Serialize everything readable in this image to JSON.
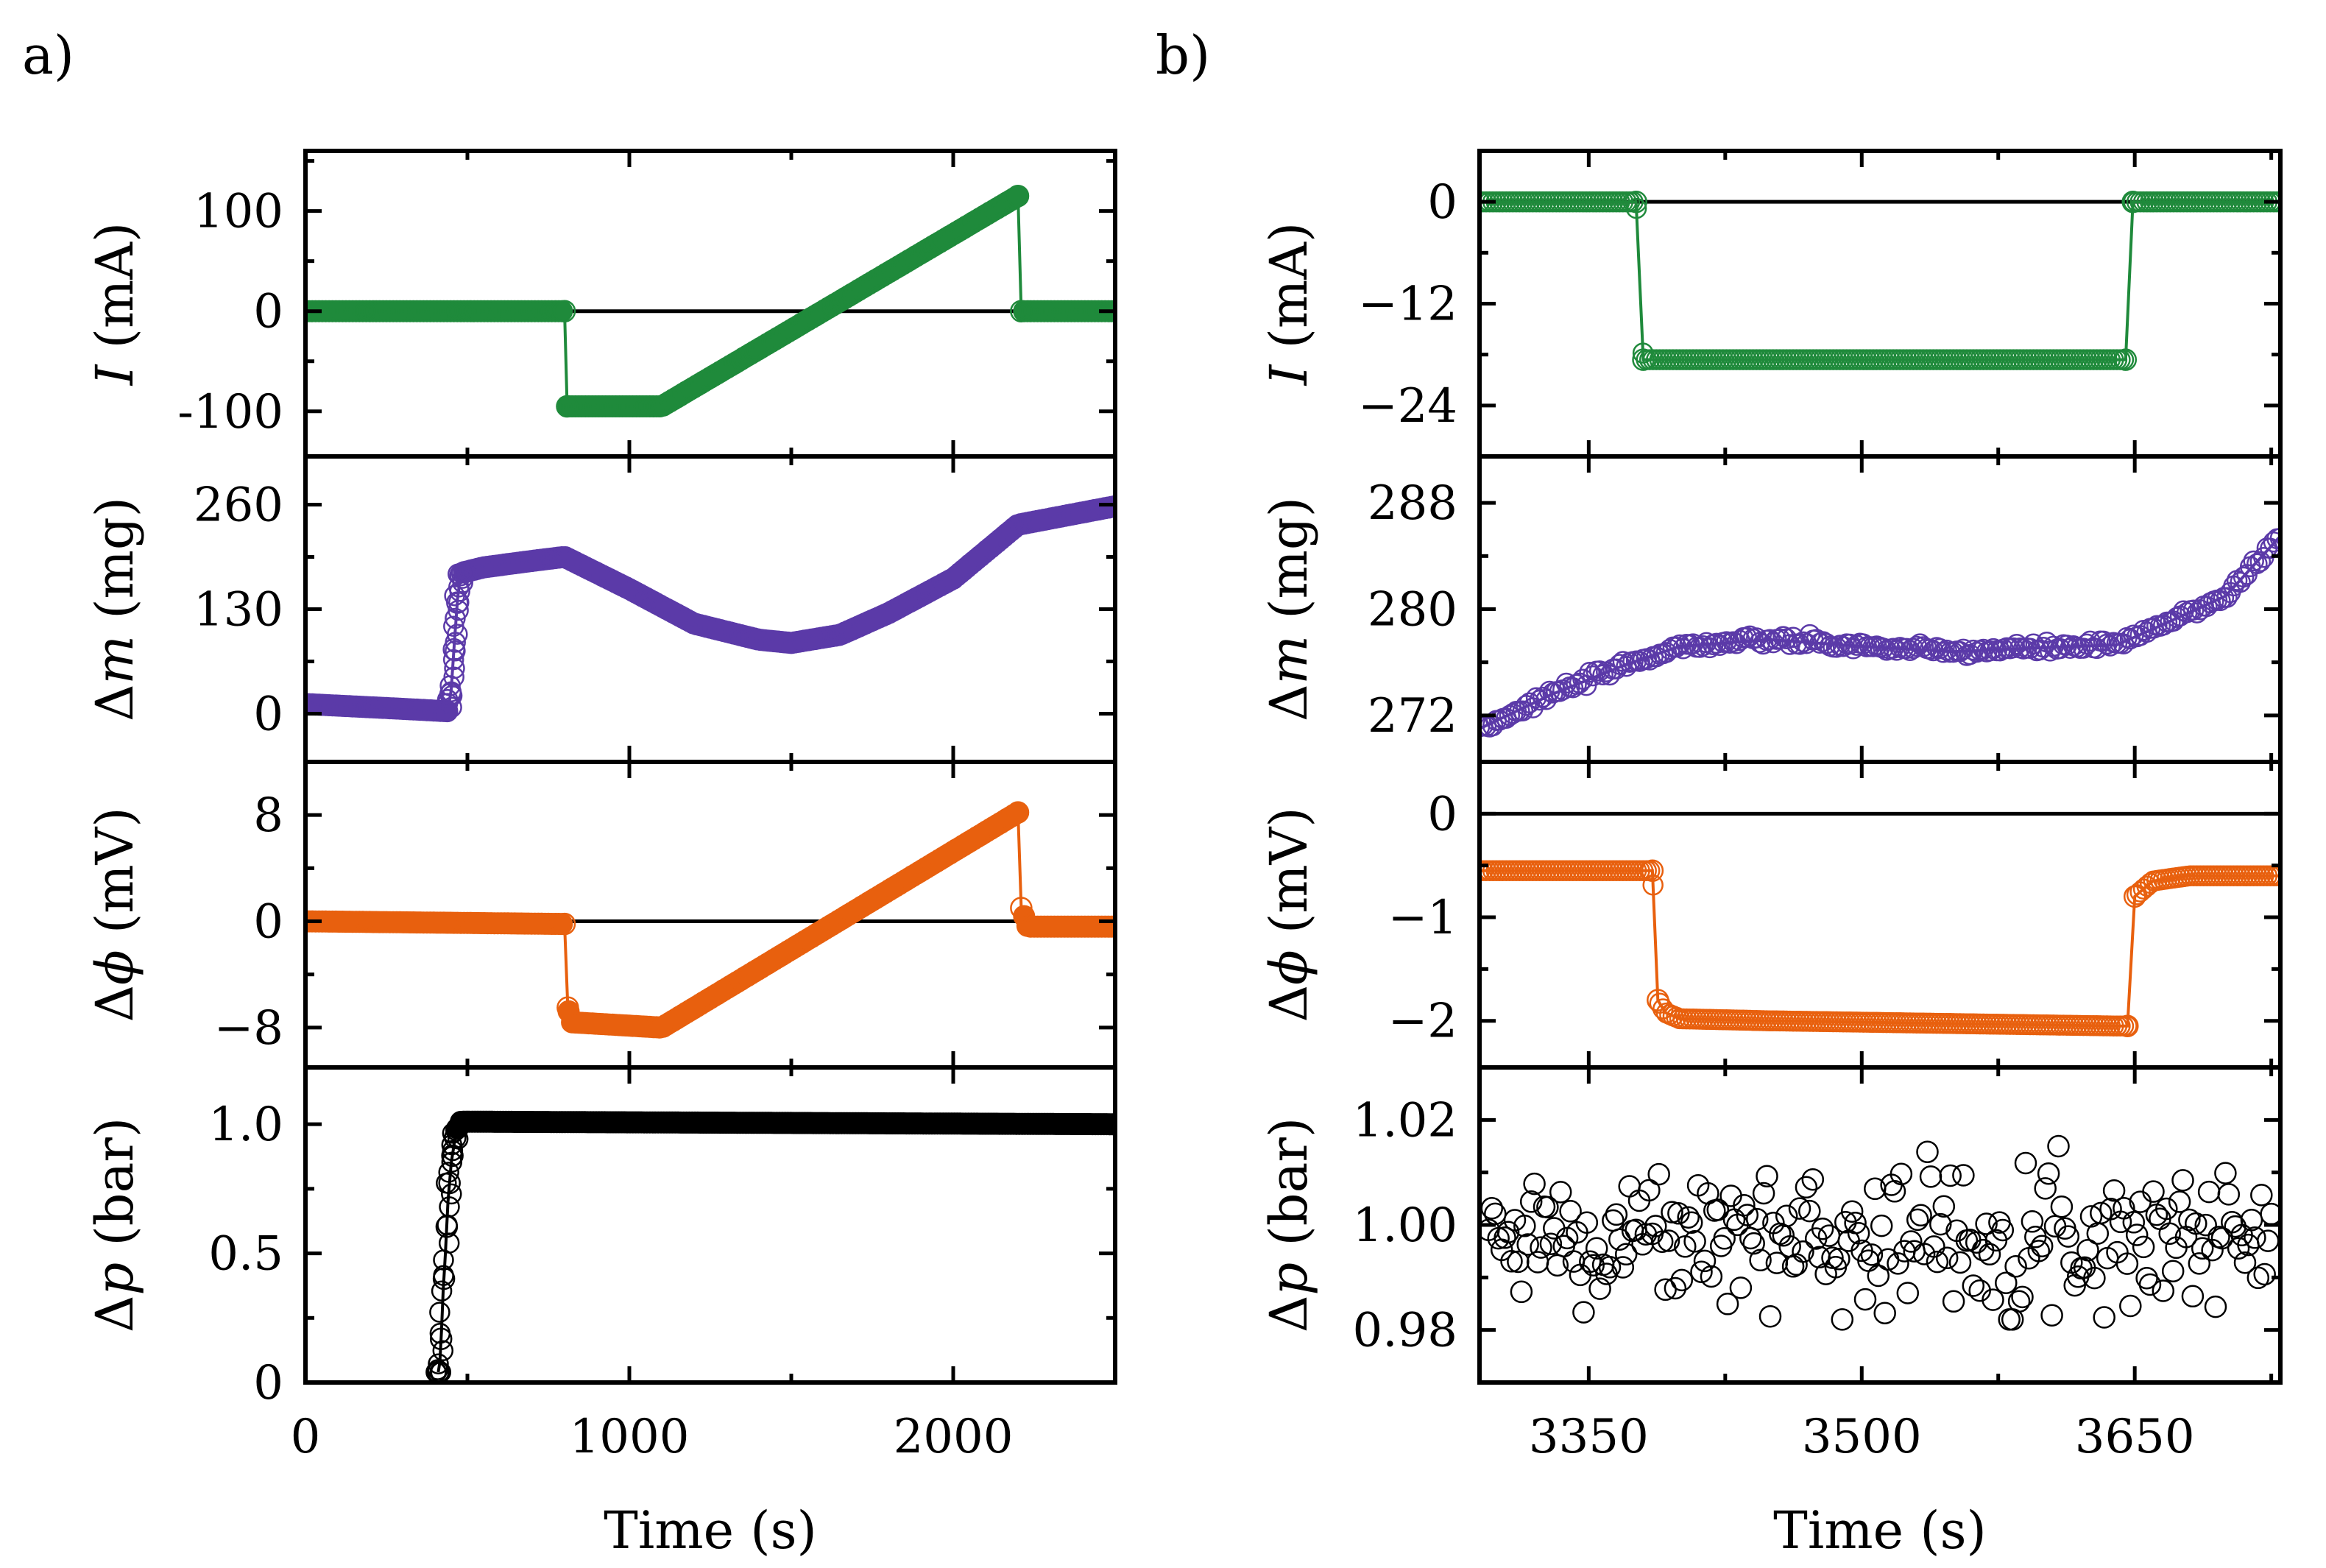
{
  "figure": {
    "panel_labels": [
      "a)",
      "b)"
    ],
    "colors": {
      "current": "#1f8a3b",
      "mass": "#5b3aa8",
      "potential": "#e8600e",
      "pressure": "#000000",
      "zero_line": "#000000"
    }
  },
  "chart_data": [
    {
      "id": "a",
      "type": "scatter",
      "panel_label": "a)",
      "xlabel": "Time (s)",
      "xlim": [
        0,
        2500
      ],
      "xticks": [
        0,
        1000,
        2000
      ],
      "xtick_labels": [
        "0",
        "1000",
        "2000"
      ],
      "subplots": [
        {
          "ylabel_symbol": "I",
          "ylabel_unit": " (mA)",
          "ylabel_prefix": "",
          "ylim": [
            -145,
            160
          ],
          "yticks": [
            -100,
            0,
            100
          ],
          "ytick_labels": [
            "-100",
            "0",
            "100"
          ],
          "zero_line": true,
          "color_key": "current",
          "marker": "filled",
          "series": [
            {
              "t": 0,
              "v": 0
            },
            {
              "t": 800,
              "v": 0
            },
            {
              "t": 808,
              "v": -95
            },
            {
              "t": 1100,
              "v": -95
            },
            {
              "t": 2200,
              "v": 115
            },
            {
              "t": 2210,
              "v": 0
            },
            {
              "t": 2500,
              "v": 0
            }
          ],
          "jumps": [
            [
              800,
              808
            ],
            [
              2200,
              2210
            ]
          ]
        },
        {
          "ylabel_symbol": "m",
          "ylabel_unit": " (mg)",
          "ylabel_prefix": "Δ",
          "ylim": [
            -60,
            320
          ],
          "yticks": [
            0,
            130,
            260
          ],
          "ytick_labels": [
            "0",
            "130",
            "260"
          ],
          "zero_line": false,
          "color_key": "mass",
          "marker": "filled",
          "series": [
            {
              "t": 0,
              "v": 12
            },
            {
              "t": 300,
              "v": 6
            },
            {
              "t": 440,
              "v": 3
            },
            {
              "t": 450,
              "v": 30
            },
            {
              "t": 460,
              "v": 90
            },
            {
              "t": 470,
              "v": 145
            },
            {
              "t": 480,
              "v": 175
            },
            {
              "t": 550,
              "v": 182
            },
            {
              "t": 700,
              "v": 190
            },
            {
              "t": 800,
              "v": 195
            },
            {
              "t": 1000,
              "v": 155
            },
            {
              "t": 1200,
              "v": 112
            },
            {
              "t": 1400,
              "v": 92
            },
            {
              "t": 1500,
              "v": 88
            },
            {
              "t": 1650,
              "v": 98
            },
            {
              "t": 1800,
              "v": 125
            },
            {
              "t": 2000,
              "v": 168
            },
            {
              "t": 2200,
              "v": 235
            },
            {
              "t": 2500,
              "v": 258
            }
          ],
          "hollow_range": [
            440,
            485
          ]
        },
        {
          "ylabel_symbol": "ϕ",
          "ylabel_unit": " (mV)",
          "ylabel_prefix": "Δ",
          "ylim": [
            -11,
            12
          ],
          "yticks": [
            -8,
            0,
            8
          ],
          "ytick_labels": [
            "−8",
            "0",
            "8"
          ],
          "zero_line": true,
          "color_key": "potential",
          "marker": "filled",
          "series": [
            {
              "t": 0,
              "v": 0
            },
            {
              "t": 800,
              "v": -0.2
            },
            {
              "t": 810,
              "v": -6.5
            },
            {
              "t": 820,
              "v": -7.6
            },
            {
              "t": 1100,
              "v": -8
            },
            {
              "t": 2200,
              "v": 8.2
            },
            {
              "t": 2210,
              "v": 1
            },
            {
              "t": 2230,
              "v": -0.4
            },
            {
              "t": 2500,
              "v": -0.4
            }
          ],
          "jumps": [
            [
              800,
              810
            ],
            [
              2200,
              2210
            ]
          ]
        },
        {
          "ylabel_symbol": "p",
          "ylabel_unit": " (bar)",
          "ylabel_prefix": "Δ",
          "ylim": [
            0,
            1.22
          ],
          "yticks": [
            0,
            0.5,
            1.0
          ],
          "ytick_labels": [
            "0",
            "0.5",
            "1.0"
          ],
          "zero_line": false,
          "color_key": "pressure",
          "marker": "filled",
          "series": [
            {
              "t": 410,
              "v": 0.04
            },
            {
              "t": 415,
              "v": 0.08
            },
            {
              "t": 420,
              "v": 0.2
            },
            {
              "t": 425,
              "v": 0.35
            },
            {
              "t": 432,
              "v": 0.5
            },
            {
              "t": 440,
              "v": 0.7
            },
            {
              "t": 450,
              "v": 0.85
            },
            {
              "t": 465,
              "v": 0.97
            },
            {
              "t": 480,
              "v": 1.01
            },
            {
              "t": 2500,
              "v": 1.0
            }
          ],
          "hollow_range": [
            400,
            470
          ]
        }
      ]
    },
    {
      "id": "b",
      "type": "scatter",
      "panel_label": "b)",
      "xlabel": "Time (s)",
      "xlim": [
        3290,
        3730
      ],
      "xticks": [
        3350,
        3500,
        3650
      ],
      "xtick_labels": [
        "3350",
        "3500",
        "3650"
      ],
      "subplots": [
        {
          "ylabel_symbol": "I",
          "ylabel_unit": " (mA)",
          "ylabel_prefix": "",
          "ylim": [
            -30,
            6
          ],
          "yticks": [
            -24,
            -12,
            0
          ],
          "ytick_labels": [
            "−24",
            "−12",
            "0"
          ],
          "zero_line": true,
          "color_key": "current",
          "marker": "hollow",
          "series": [
            {
              "t": 3290,
              "v": 0
            },
            {
              "t": 3376,
              "v": 0
            },
            {
              "t": 3380,
              "v": -18.6
            },
            {
              "t": 3645,
              "v": -18.6
            },
            {
              "t": 3649,
              "v": 0
            },
            {
              "t": 3730,
              "v": 0
            }
          ],
          "jumps": [
            [
              3376,
              3380
            ],
            [
              3645,
              3649
            ]
          ]
        },
        {
          "ylabel_symbol": "m",
          "ylabel_unit": " (mg)",
          "ylabel_prefix": "Δ",
          "ylim": [
            268.5,
            291.5
          ],
          "yticks": [
            272,
            280,
            288
          ],
          "ytick_labels": [
            "272",
            "280",
            "288"
          ],
          "zero_line": false,
          "color_key": "mass",
          "marker": "hollow",
          "series": [
            {
              "t": 3290,
              "v": 271
            },
            {
              "t": 3330,
              "v": 273.6
            },
            {
              "t": 3370,
              "v": 275.8
            },
            {
              "t": 3400,
              "v": 277.2
            },
            {
              "t": 3450,
              "v": 277.7
            },
            {
              "t": 3500,
              "v": 277.2
            },
            {
              "t": 3550,
              "v": 276.8
            },
            {
              "t": 3600,
              "v": 277.1
            },
            {
              "t": 3640,
              "v": 277.3
            },
            {
              "t": 3660,
              "v": 278.5
            },
            {
              "t": 3700,
              "v": 281
            },
            {
              "t": 3730,
              "v": 285.5
            }
          ]
        },
        {
          "ylabel_symbol": "ϕ",
          "ylabel_unit": " (mV)",
          "ylabel_prefix": "Δ",
          "ylim": [
            -2.45,
            0.5
          ],
          "yticks": [
            -2,
            -1,
            0
          ],
          "ytick_labels": [
            "−2",
            "−1",
            "0"
          ],
          "zero_line": true,
          "color_key": "potential",
          "marker": "hollow",
          "series": [
            {
              "t": 3290,
              "v": -0.55
            },
            {
              "t": 3385,
              "v": -0.55
            },
            {
              "t": 3388,
              "v": -1.8
            },
            {
              "t": 3392,
              "v": -1.92
            },
            {
              "t": 3400,
              "v": -1.98
            },
            {
              "t": 3450,
              "v": -2.0
            },
            {
              "t": 3640,
              "v": -2.05
            },
            {
              "t": 3646,
              "v": -2.05
            },
            {
              "t": 3650,
              "v": -0.8
            },
            {
              "t": 3660,
              "v": -0.65
            },
            {
              "t": 3680,
              "v": -0.6
            },
            {
              "t": 3730,
              "v": -0.6
            }
          ],
          "jumps": [
            [
              3385,
              3388
            ],
            [
              3646,
              3650
            ]
          ]
        },
        {
          "ylabel_symbol": "p",
          "ylabel_unit": " (bar)",
          "ylabel_prefix": "Δ",
          "ylim": [
            0.97,
            1.03
          ],
          "yticks": [
            0.98,
            1.0,
            1.02
          ],
          "ytick_labels": [
            "0.98",
            "1.00",
            "1.02"
          ],
          "zero_line": false,
          "color_key": "pressure",
          "marker": "hollow",
          "noise": {
            "mean": 0.998,
            "sd": 0.0065,
            "count": 240,
            "min": 0.982,
            "max": 1.015
          }
        }
      ]
    }
  ]
}
